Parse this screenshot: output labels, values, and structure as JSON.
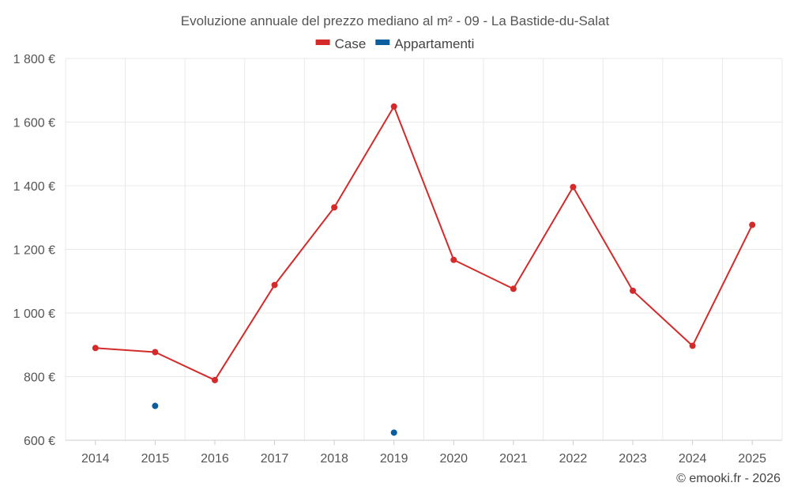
{
  "chart_data": {
    "type": "line",
    "title": "Evoluzione annuale del prezzo mediano al m² - 09 - La Bastide-du-Salat",
    "categories": [
      "2014",
      "2015",
      "2016",
      "2017",
      "2018",
      "2019",
      "2020",
      "2021",
      "2022",
      "2023",
      "2024",
      "2025"
    ],
    "series": [
      {
        "name": "Case",
        "color": "#d42a2a",
        "line": true,
        "values": [
          890,
          877,
          789,
          1088,
          1332,
          1649,
          1167,
          1076,
          1396,
          1070,
          897,
          1277
        ]
      },
      {
        "name": "Appartamenti",
        "color": "#0b5e9e",
        "line": false,
        "values": [
          null,
          708,
          null,
          null,
          null,
          624,
          null,
          null,
          null,
          null,
          null,
          null
        ]
      }
    ],
    "ylim": [
      600,
      1800
    ],
    "yticks": [
      600,
      800,
      1000,
      1200,
      1400,
      1600,
      1800
    ],
    "ytick_labels": [
      "600 €",
      "800 €",
      "1 000 €",
      "1 200 €",
      "1 400 €",
      "1 600 €",
      "1 800 €"
    ],
    "xlabel": "",
    "ylabel": "",
    "grid": true,
    "legend": "top-center"
  },
  "credit": "© emooki.fr - 2026"
}
